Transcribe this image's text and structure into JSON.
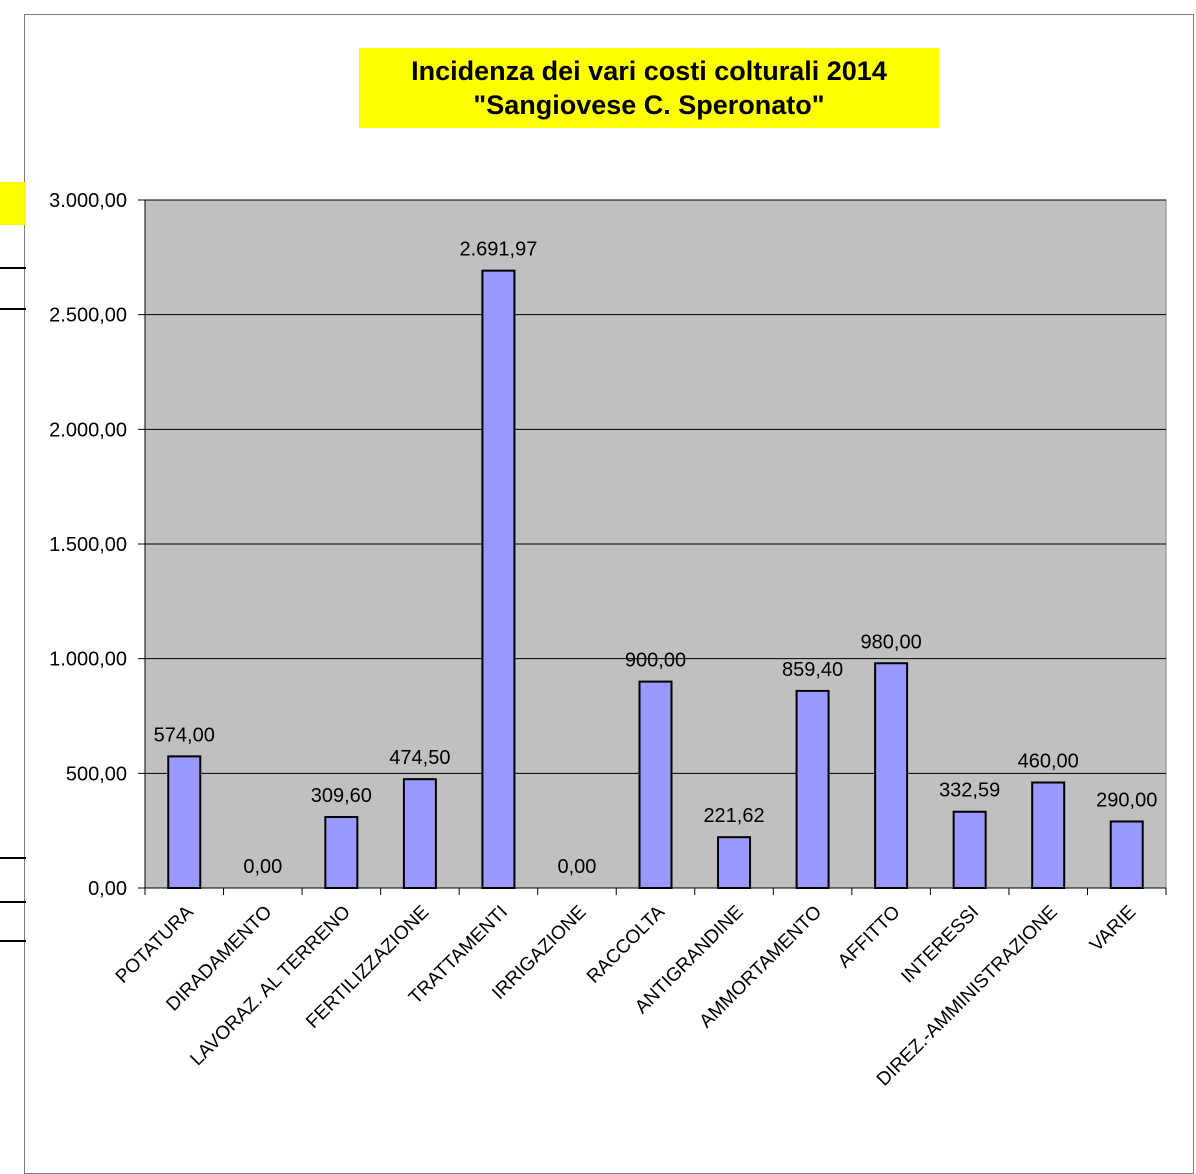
{
  "chart_data": {
    "type": "bar",
    "title": "Incidenza dei vari costi colturali 2014",
    "subtitle": "\"Sangiovese C. Speronato\"",
    "categories": [
      "POTATURA",
      "DIRADAMENTO",
      "LAVORAZ. AL TERRENO",
      "FERTILIZZAZIONE",
      "TRATTAMENTI",
      "IRRIGAZIONE",
      "RACCOLTA",
      "ANTIGRANDINE",
      "AMMORTAMENTO",
      "AFFITTO",
      "INTERESSI",
      "DIREZ.-AMMINISTRAZIONE",
      "VARIE"
    ],
    "values": [
      574.0,
      0.0,
      309.6,
      474.5,
      2691.97,
      0.0,
      900.0,
      221.62,
      859.4,
      980.0,
      332.59,
      460.0,
      290.0
    ],
    "data_labels": [
      "574,00",
      "0,00",
      "309,60",
      "474,50",
      "2.691,97",
      "0,00",
      "900,00",
      "221,62",
      "859,40",
      "980,00",
      "332,59",
      "460,00",
      "290,00"
    ],
    "y_ticks": [
      0,
      500,
      1000,
      1500,
      2000,
      2500,
      3000
    ],
    "y_tick_labels": [
      "0,00",
      "500,00",
      "1.000,00",
      "1.500,00",
      "2.000,00",
      "2.500,00",
      "3.000,00"
    ],
    "ylim": [
      0,
      3000
    ],
    "xlabel": "",
    "ylabel": "",
    "grid": true,
    "legend": "none",
    "colors": {
      "bar_fill": "#9999ff",
      "plot_background": "#c0c0c0",
      "title_background": "#ffff00",
      "gridline": "#000000"
    }
  }
}
